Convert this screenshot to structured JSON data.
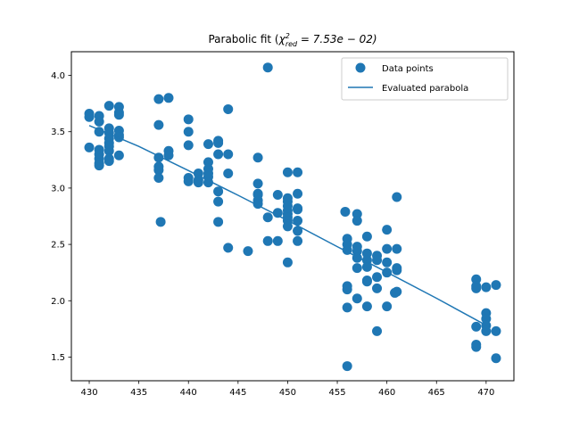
{
  "chart_data": {
    "type": "scatter",
    "title": "Parabolic fit (χ²_red = 7.53e − 02)",
    "title_parts": {
      "prefix": "Parabolic fit (",
      "chi": "χ",
      "sup": "2",
      "sub": "red",
      "suffix": " = 7.53e − 02)"
    },
    "xlabel": "",
    "ylabel": "",
    "xlim": [
      428.2,
      472.8
    ],
    "ylim": [
      1.29,
      4.21
    ],
    "xticks": [
      430,
      435,
      440,
      445,
      450,
      455,
      460,
      465,
      470
    ],
    "yticks": [
      1.5,
      2.0,
      2.5,
      3.0,
      3.5,
      4.0
    ],
    "ytick_labels": [
      "1.5",
      "2.0",
      "2.5",
      "3.0",
      "3.5",
      "4.0"
    ],
    "grid": false,
    "legend_position": "top-right",
    "colors": {
      "series": "#1f77b4",
      "axis": "#000000",
      "background": "#ffffff"
    },
    "series": [
      {
        "name": "Data points",
        "kind": "scatter",
        "points": [
          [
            430,
            3.66
          ],
          [
            430,
            3.63
          ],
          [
            430,
            3.36
          ],
          [
            431,
            3.64
          ],
          [
            431,
            3.59
          ],
          [
            431,
            3.5
          ],
          [
            431,
            3.34
          ],
          [
            431,
            3.3
          ],
          [
            431,
            3.26
          ],
          [
            431,
            3.22
          ],
          [
            431,
            3.2
          ],
          [
            432,
            3.73
          ],
          [
            432,
            3.53
          ],
          [
            432,
            3.49
          ],
          [
            432,
            3.44
          ],
          [
            432,
            3.4
          ],
          [
            432,
            3.37
          ],
          [
            432,
            3.33
          ],
          [
            432,
            3.26
          ],
          [
            432,
            3.24
          ],
          [
            433,
            3.72
          ],
          [
            433,
            3.67
          ],
          [
            433,
            3.65
          ],
          [
            433,
            3.51
          ],
          [
            433,
            3.47
          ],
          [
            433,
            3.45
          ],
          [
            433,
            3.29
          ],
          [
            437,
            3.79
          ],
          [
            437,
            3.56
          ],
          [
            437,
            3.27
          ],
          [
            437,
            3.19
          ],
          [
            437,
            3.16
          ],
          [
            437,
            3.09
          ],
          [
            437.2,
            2.7
          ],
          [
            438,
            3.8
          ],
          [
            438,
            3.33
          ],
          [
            438,
            3.29
          ],
          [
            440,
            3.61
          ],
          [
            440,
            3.5
          ],
          [
            440,
            3.38
          ],
          [
            440,
            3.09
          ],
          [
            440,
            3.06
          ],
          [
            441,
            3.13
          ],
          [
            441,
            3.07
          ],
          [
            441,
            3.05
          ],
          [
            442,
            3.39
          ],
          [
            442,
            3.23
          ],
          [
            442,
            3.17
          ],
          [
            442,
            3.13
          ],
          [
            442,
            3.1
          ],
          [
            442,
            3.05
          ],
          [
            443,
            3.42
          ],
          [
            443,
            3.4
          ],
          [
            443,
            3.3
          ],
          [
            443,
            2.97
          ],
          [
            443,
            2.88
          ],
          [
            443,
            2.7
          ],
          [
            444,
            3.7
          ],
          [
            444,
            3.3
          ],
          [
            444,
            3.13
          ],
          [
            444,
            2.47
          ],
          [
            446,
            2.44
          ],
          [
            447,
            3.27
          ],
          [
            447,
            3.04
          ],
          [
            447,
            2.95
          ],
          [
            447,
            2.94
          ],
          [
            447,
            2.89
          ],
          [
            447,
            2.86
          ],
          [
            448,
            4.07
          ],
          [
            448,
            2.74
          ],
          [
            448,
            2.53
          ],
          [
            449,
            2.94
          ],
          [
            449,
            2.78
          ],
          [
            449,
            2.53
          ],
          [
            450,
            3.14
          ],
          [
            450,
            2.91
          ],
          [
            450,
            2.88
          ],
          [
            450,
            2.84
          ],
          [
            450,
            2.8
          ],
          [
            450,
            2.77
          ],
          [
            450,
            2.74
          ],
          [
            450,
            2.71
          ],
          [
            450,
            2.66
          ],
          [
            450,
            2.34
          ],
          [
            451,
            3.14
          ],
          [
            451,
            2.95
          ],
          [
            451,
            2.82
          ],
          [
            451,
            2.81
          ],
          [
            451,
            2.71
          ],
          [
            451,
            2.62
          ],
          [
            451,
            2.53
          ],
          [
            455.8,
            2.79
          ],
          [
            456,
            2.55
          ],
          [
            456,
            2.5
          ],
          [
            456,
            2.45
          ],
          [
            456,
            2.13
          ],
          [
            456,
            2.1
          ],
          [
            456,
            1.94
          ],
          [
            456,
            1.42
          ],
          [
            457,
            2.77
          ],
          [
            457,
            2.71
          ],
          [
            457,
            2.48
          ],
          [
            457,
            2.44
          ],
          [
            457,
            2.38
          ],
          [
            457,
            2.29
          ],
          [
            457,
            2.02
          ],
          [
            458,
            2.57
          ],
          [
            458,
            2.42
          ],
          [
            458,
            2.36
          ],
          [
            458,
            2.3
          ],
          [
            458,
            2.18
          ],
          [
            458,
            2.17
          ],
          [
            458,
            1.95
          ],
          [
            459,
            2.4
          ],
          [
            459,
            2.36
          ],
          [
            459,
            2.21
          ],
          [
            459,
            2.11
          ],
          [
            459,
            1.73
          ],
          [
            460,
            2.63
          ],
          [
            460,
            2.46
          ],
          [
            460,
            2.34
          ],
          [
            460,
            2.25
          ],
          [
            460,
            1.95
          ],
          [
            461,
            2.92
          ],
          [
            461,
            2.46
          ],
          [
            461,
            2.29
          ],
          [
            461,
            2.27
          ],
          [
            461,
            2.08
          ],
          [
            460.8,
            2.07
          ],
          [
            469,
            2.19
          ],
          [
            469,
            2.13
          ],
          [
            469,
            2.11
          ],
          [
            469,
            1.77
          ],
          [
            469,
            1.61
          ],
          [
            469,
            1.59
          ],
          [
            470,
            2.12
          ],
          [
            470,
            1.89
          ],
          [
            470,
            1.84
          ],
          [
            470,
            1.78
          ],
          [
            470,
            1.73
          ],
          [
            471,
            2.14
          ],
          [
            471,
            1.73
          ],
          [
            471,
            1.49
          ]
        ]
      },
      {
        "name": "Evaluated parabola",
        "kind": "line",
        "points": [
          [
            430,
            3.555
          ],
          [
            435,
            3.37
          ],
          [
            440,
            3.155
          ],
          [
            445,
            2.936
          ],
          [
            450,
            2.712
          ],
          [
            455,
            2.48
          ],
          [
            460,
            2.253
          ],
          [
            465,
            2.022
          ],
          [
            470,
            1.782
          ]
        ]
      }
    ]
  }
}
